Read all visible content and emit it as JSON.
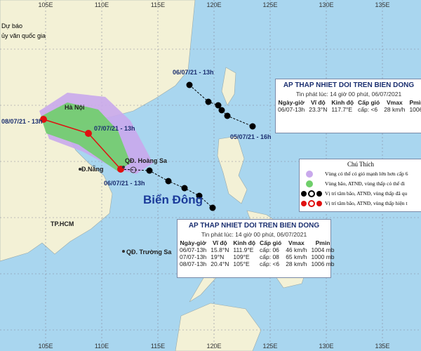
{
  "header": {
    "agency_lines": [
      "Dự báo",
      "ủy văn quốc gia"
    ]
  },
  "axis": {
    "top": [
      "105E",
      "110E",
      "115E",
      "120E",
      "125E",
      "130E",
      "135E"
    ],
    "bottom": [
      "105E",
      "110E",
      "115E",
      "120E",
      "125E",
      "130E",
      "135E"
    ]
  },
  "places": [
    "Hà Nội",
    "Đ.Nẵng",
    "QĐ. Hoàng Sa",
    "TP.HCM",
    "QĐ. Trường Sa",
    "Biển Đông"
  ],
  "track_labels": [
    "08/07/21 - 13h",
    "07/07/21 - 13h",
    "06/07/21 - 13h",
    "06/07/21 - 13h",
    "05/07/21 - 16h"
  ],
  "bulletin_1": {
    "title": "AP THAP NHIET DOI TREN BIEN DONG",
    "issued": "Tin phát lúc: 14 giờ 00 phút, 06/07/2021",
    "headers": [
      "Ngày-giờ",
      "Vĩ độ",
      "Kinh độ",
      "Cấp gió",
      "Vmax",
      "Pmin"
    ],
    "rows": [
      [
        "06/07-13h",
        "23.3°N",
        "117.7°E",
        "cấp: <6",
        "28 km/h",
        "1006"
      ]
    ]
  },
  "legend": {
    "title": "Chú Thích",
    "items": [
      "Vùng có thể có gió mạnh lớn hơn cấp 6",
      "Vùng bão, ATNĐ, vùng thấp có thể đi",
      "Vị trí tâm bão, ATNĐ, vùng thấp đã qu",
      "Vị trí tâm bão, ATNĐ, vùng thấp hiện t"
    ]
  },
  "bulletin_2": {
    "title": "AP THAP NHIET DOI TREN BIEN DONG",
    "issued": "Tin phát lúc: 14 giờ 00 phút, 06/07/2021",
    "headers": [
      "Ngày-giờ",
      "Vĩ độ",
      "Kinh độ",
      "Cấp gió",
      "Vmax",
      "Pmin"
    ],
    "rows": [
      [
        "06/07-13h",
        "15.8°N",
        "111.9°E",
        "cấp: 06",
        "46 km/h",
        "1004 mb"
      ],
      [
        "07/07-13h",
        "19°N",
        "109°E",
        "cấp: 08",
        "65 km/h",
        "1000 mb"
      ],
      [
        "08/07-13h",
        "20.4°N",
        "105°E",
        "cấp: <6",
        "28 km/h",
        "1006 mb"
      ]
    ]
  }
}
